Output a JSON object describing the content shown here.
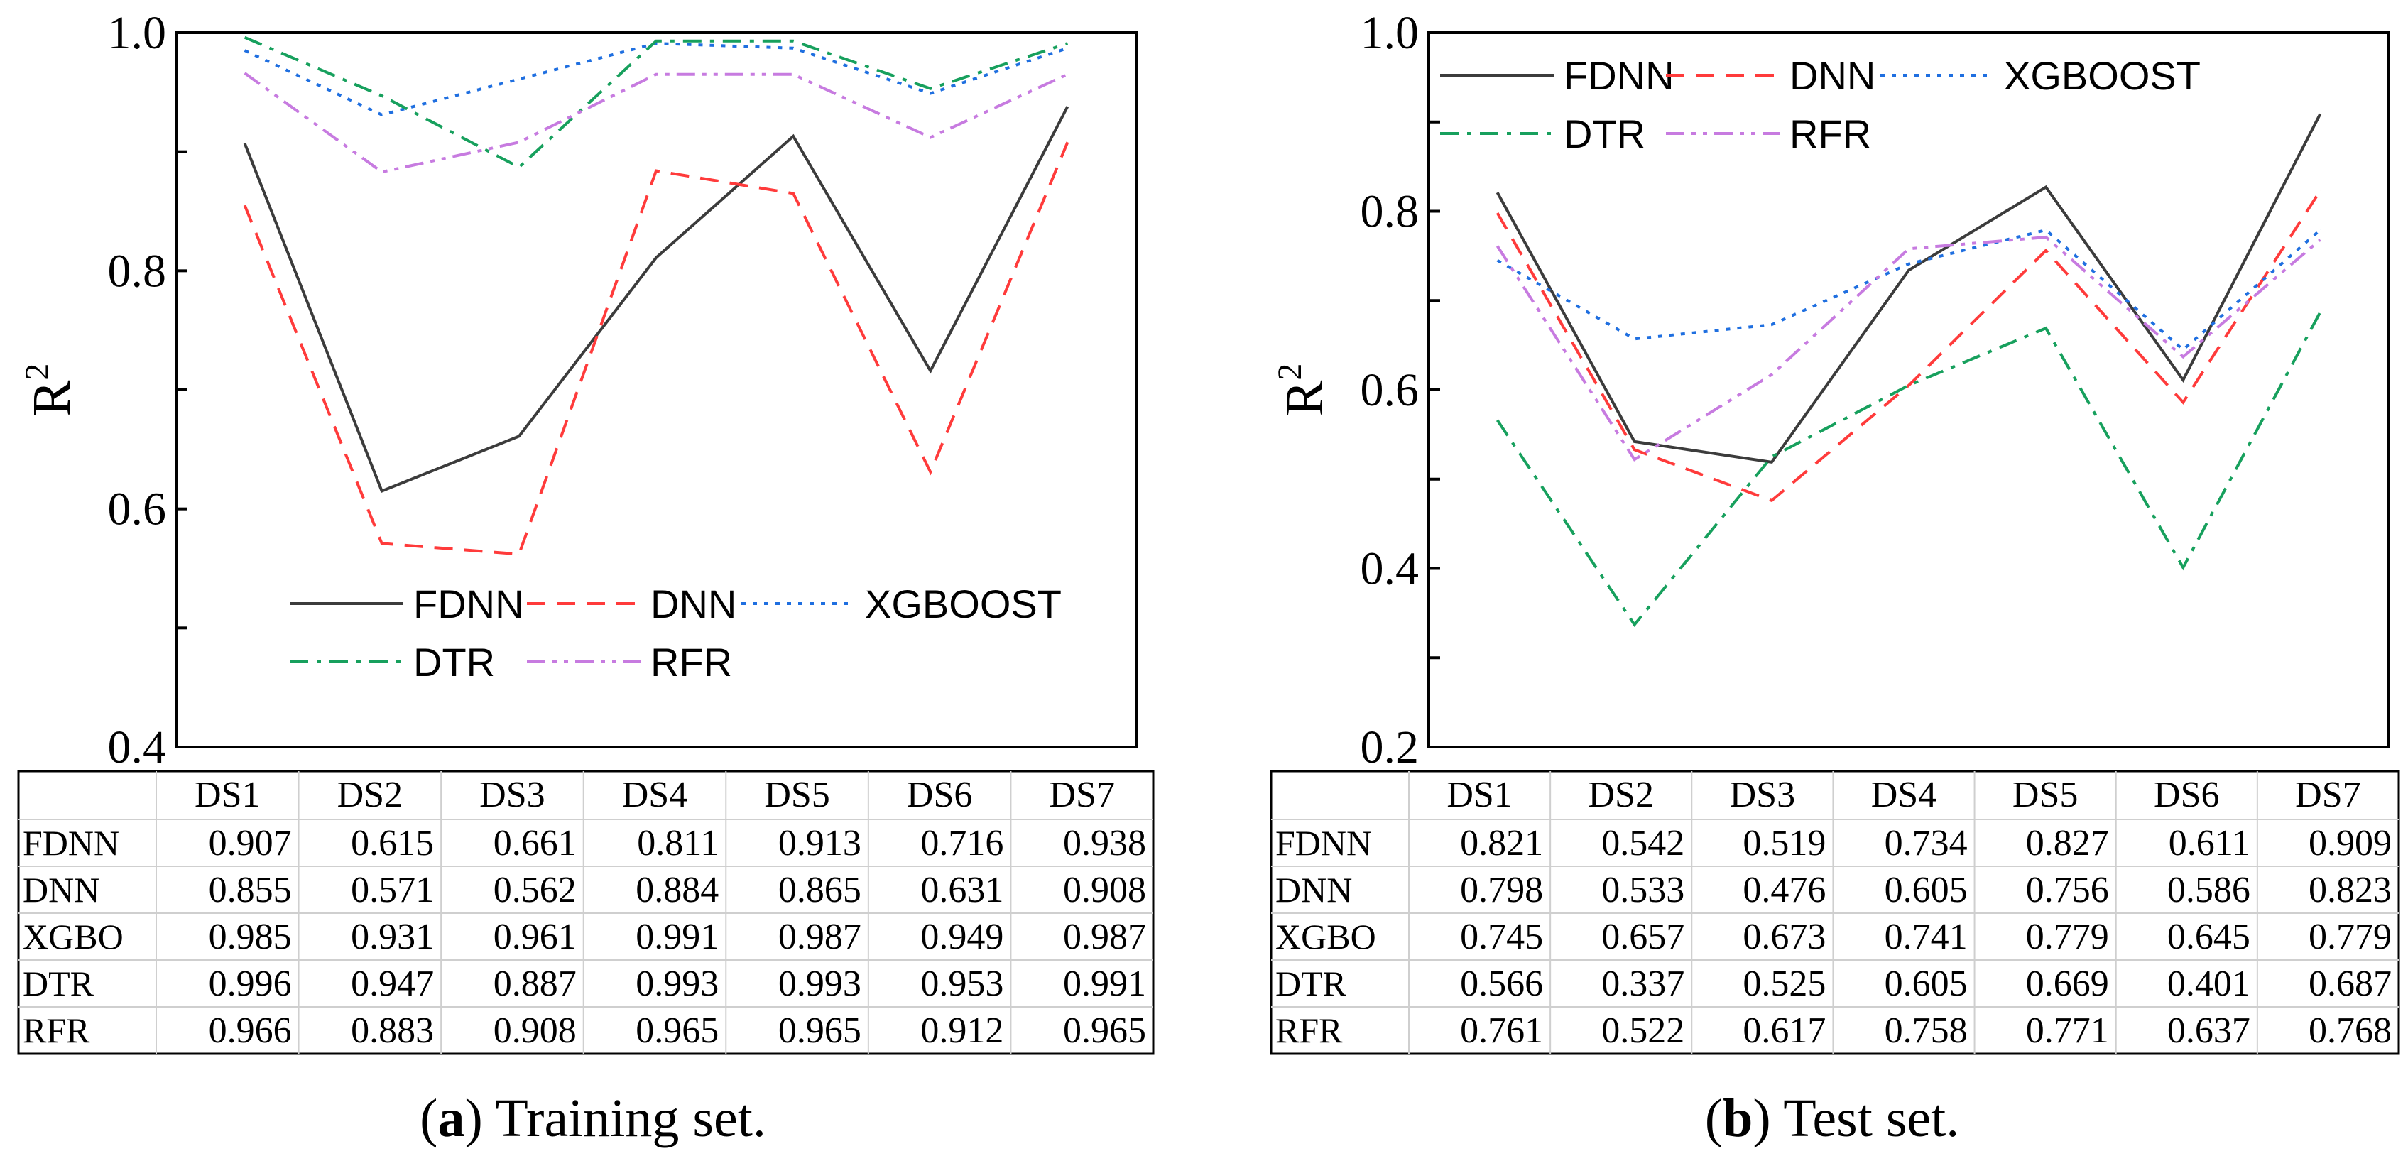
{
  "chart_data": [
    {
      "type": "line",
      "panel": "a",
      "caption_label": "a",
      "caption_text": "Training set.",
      "title": "",
      "xlabel": "",
      "ylabel": "R",
      "ylabel_sup": "2",
      "categories": [
        "DS1",
        "DS2",
        "DS3",
        "DS4",
        "DS5",
        "DS6",
        "DS7"
      ],
      "ylim": [
        0.4,
        1.0
      ],
      "ymajor": [
        "0.4",
        "0.6",
        "0.8",
        "1.0"
      ],
      "legend_position": "bottom-center",
      "series": [
        {
          "name": "FDNN",
          "row_label": "FDNN",
          "style": "solid",
          "color": "#3c3c3c",
          "values": [
            0.907,
            0.615,
            0.661,
            0.811,
            0.913,
            0.716,
            0.938
          ]
        },
        {
          "name": "DNN",
          "row_label": "DNN",
          "style": "dashed",
          "color": "#ff3b3b",
          "values": [
            0.855,
            0.571,
            0.562,
            0.884,
            0.865,
            0.631,
            0.908
          ]
        },
        {
          "name": "XGBOOST",
          "row_label": "XGBO",
          "style": "dotted",
          "color": "#1f6fe0",
          "values": [
            0.985,
            0.931,
            0.961,
            0.991,
            0.987,
            0.949,
            0.987
          ]
        },
        {
          "name": "DTR",
          "row_label": "DTR",
          "style": "dashdot",
          "color": "#17a05d",
          "values": [
            0.996,
            0.947,
            0.887,
            0.993,
            0.993,
            0.953,
            0.991
          ]
        },
        {
          "name": "RFR",
          "row_label": "RFR",
          "style": "dashdotdot",
          "color": "#c77be0",
          "values": [
            0.966,
            0.883,
            0.908,
            0.965,
            0.965,
            0.912,
            0.965
          ]
        }
      ],
      "table": {
        "rows": [
          [
            "0.907",
            "0.615",
            "0.661",
            "0.811",
            "0.913",
            "0.716",
            "0.938"
          ],
          [
            "0.855",
            "0.571",
            "0.562",
            "0.884",
            "0.865",
            "0.631",
            "0.908"
          ],
          [
            "0.985",
            "0.931",
            "0.961",
            "0.991",
            "0.987",
            "0.949",
            "0.987"
          ],
          [
            "0.996",
            "0.947",
            "0.887",
            "0.993",
            "0.993",
            "0.953",
            "0.991"
          ],
          [
            "0.966",
            "0.883",
            "0.908",
            "0.965",
            "0.965",
            "0.912",
            "0.965"
          ]
        ]
      }
    },
    {
      "type": "line",
      "panel": "b",
      "caption_label": "b",
      "caption_text": "Test set.",
      "title": "",
      "xlabel": "",
      "ylabel": "R",
      "ylabel_sup": "2",
      "categories": [
        "DS1",
        "DS2",
        "DS3",
        "DS4",
        "DS5",
        "DS6",
        "DS7"
      ],
      "ylim": [
        0.2,
        1.0
      ],
      "ymajor": [
        "0.2",
        "0.4",
        "0.6",
        "0.8",
        "1.0"
      ],
      "legend_position": "top-left",
      "series": [
        {
          "name": "FDNN",
          "row_label": "FDNN",
          "style": "solid",
          "color": "#3c3c3c",
          "values": [
            0.821,
            0.542,
            0.519,
            0.734,
            0.827,
            0.611,
            0.909
          ]
        },
        {
          "name": "DNN",
          "row_label": "DNN",
          "style": "dashed",
          "color": "#ff3b3b",
          "values": [
            0.798,
            0.533,
            0.476,
            0.605,
            0.756,
            0.586,
            0.823
          ]
        },
        {
          "name": "XGBOOST",
          "row_label": "XGBO",
          "style": "dotted",
          "color": "#1f6fe0",
          "values": [
            0.745,
            0.657,
            0.673,
            0.741,
            0.779,
            0.645,
            0.779
          ]
        },
        {
          "name": "DTR",
          "row_label": "DTR",
          "style": "dashdot",
          "color": "#17a05d",
          "values": [
            0.566,
            0.337,
            0.525,
            0.605,
            0.669,
            0.401,
            0.687
          ]
        },
        {
          "name": "RFR",
          "row_label": "RFR",
          "style": "dashdotdot",
          "color": "#c77be0",
          "values": [
            0.761,
            0.522,
            0.617,
            0.758,
            0.771,
            0.637,
            0.768
          ]
        }
      ],
      "table": {
        "rows": [
          [
            "0.821",
            "0.542",
            "0.519",
            "0.734",
            "0.827",
            "0.611",
            "0.909"
          ],
          [
            "0.798",
            "0.533",
            "0.476",
            "0.605",
            "0.756",
            "0.586",
            "0.823"
          ],
          [
            "0.745",
            "0.657",
            "0.673",
            "0.741",
            "0.779",
            "0.645",
            "0.779"
          ],
          [
            "0.566",
            "0.337",
            "0.525",
            "0.605",
            "0.669",
            "0.401",
            "0.687"
          ],
          [
            "0.761",
            "0.522",
            "0.617",
            "0.758",
            "0.771",
            "0.637",
            "0.768"
          ]
        ]
      }
    }
  ]
}
